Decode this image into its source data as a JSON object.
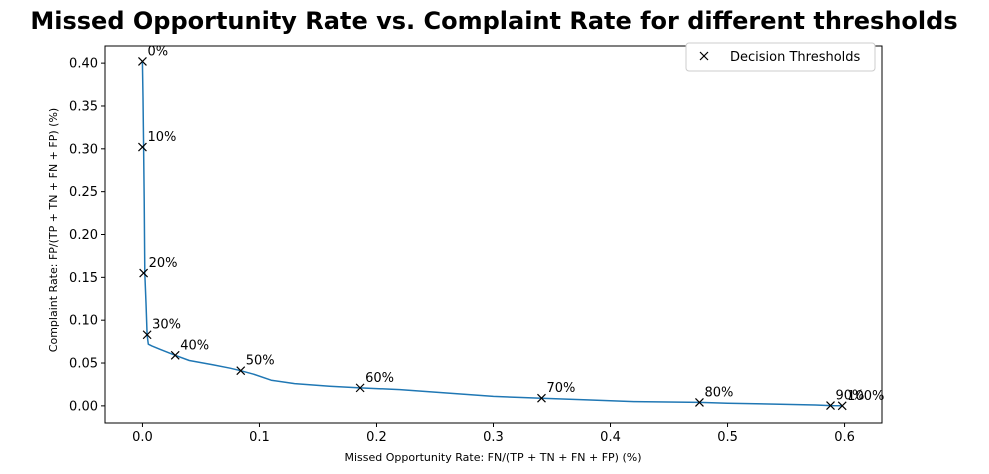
{
  "chart_data": {
    "type": "line",
    "title": "Missed Opportunity Rate vs. Complaint Rate for different thresholds",
    "xlabel": "Missed Opportunity Rate: FN/(TP + TN + FN + FP) (%)",
    "ylabel": "Complaint Rate: FP/(TP + TN + FN + FP) (%)",
    "xlim": [
      -0.032,
      0.632
    ],
    "ylim": [
      -0.02,
      0.42
    ],
    "xticks": [
      0.0,
      0.1,
      0.2,
      0.3,
      0.4,
      0.5,
      0.6
    ],
    "xtick_labels": [
      "0.0",
      "0.1",
      "0.2",
      "0.3",
      "0.4",
      "0.5",
      "0.6"
    ],
    "yticks": [
      0.0,
      0.05,
      0.1,
      0.15,
      0.2,
      0.25,
      0.3,
      0.35,
      0.4
    ],
    "ytick_labels": [
      "0.00",
      "0.05",
      "0.10",
      "0.15",
      "0.20",
      "0.25",
      "0.30",
      "0.35",
      "0.40"
    ],
    "grid": false,
    "legend": {
      "position": "top-right",
      "entries": [
        "Decision Thresholds"
      ]
    },
    "curve": {
      "color": "#1f77b4",
      "x": [
        0.0,
        0.0005,
        0.001,
        0.0015,
        0.002,
        0.003,
        0.004,
        0.005,
        0.008,
        0.015,
        0.028,
        0.04,
        0.06,
        0.075,
        0.084,
        0.095,
        0.11,
        0.13,
        0.16,
        0.186,
        0.22,
        0.26,
        0.3,
        0.341,
        0.38,
        0.42,
        0.476,
        0.5,
        0.54,
        0.575,
        0.588,
        0.598
      ],
      "y": [
        0.402,
        0.36,
        0.302,
        0.24,
        0.155,
        0.12,
        0.083,
        0.072,
        0.07,
        0.066,
        0.059,
        0.053,
        0.048,
        0.044,
        0.041,
        0.037,
        0.03,
        0.026,
        0.023,
        0.021,
        0.019,
        0.015,
        0.011,
        0.009,
        0.007,
        0.005,
        0.004,
        0.003,
        0.002,
        0.001,
        0.0003,
        0.0001
      ]
    },
    "thresholds": {
      "marker": "x",
      "color": "#000000",
      "labels": [
        "0%",
        "10%",
        "20%",
        "30%",
        "40%",
        "50%",
        "60%",
        "70%",
        "80%",
        "90%",
        "100%"
      ],
      "x": [
        0.0,
        0.0,
        0.001,
        0.004,
        0.028,
        0.084,
        0.186,
        0.341,
        0.476,
        0.588,
        0.598
      ],
      "y": [
        0.402,
        0.302,
        0.155,
        0.083,
        0.059,
        0.041,
        0.021,
        0.009,
        0.004,
        0.0003,
        0.0001
      ]
    }
  }
}
